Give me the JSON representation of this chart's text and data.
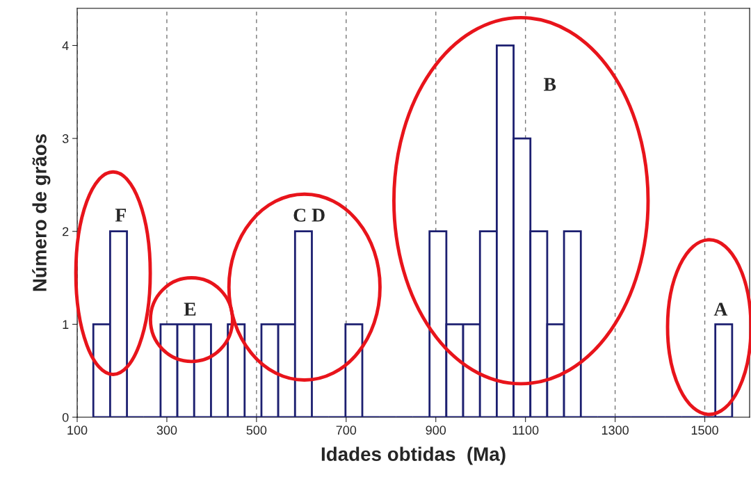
{
  "chart_data": {
    "type": "histogram",
    "xlabel": "Idades obtidas  (Ma)",
    "ylabel": "Número de grãos",
    "bins": [
      136,
      173.5,
      211,
      248.5,
      286,
      323.5,
      361,
      398.5,
      436,
      473.5,
      511,
      548.5,
      586,
      623.5,
      661,
      698.5,
      736,
      773.5,
      811,
      848.5,
      886,
      923.5,
      961,
      998.5,
      1036,
      1073.5,
      1111,
      1148.5,
      1186,
      1223.5,
      1261,
      1298.5,
      1336,
      1373.5,
      1411,
      1448.5,
      1486,
      1523.5,
      1561
    ],
    "values": [
      1,
      2,
      0,
      0,
      1,
      1,
      1,
      0,
      1,
      0,
      1,
      1,
      2,
      0,
      0,
      1,
      0,
      0,
      0,
      0,
      2,
      1,
      1,
      2,
      4,
      3,
      2,
      1,
      2,
      0,
      0,
      0,
      0,
      0,
      0,
      0,
      0,
      1
    ],
    "color": "#1c1f70",
    "xlim": [
      100,
      1600
    ],
    "ylim": [
      0,
      4.4
    ],
    "xticks": [
      100,
      300,
      500,
      700,
      900,
      1100,
      1300,
      1500
    ],
    "yticks": [
      0,
      1,
      2,
      3,
      4
    ],
    "grid": "x",
    "annotations": [
      "F",
      "E",
      "C D",
      "B",
      "A"
    ]
  }
}
